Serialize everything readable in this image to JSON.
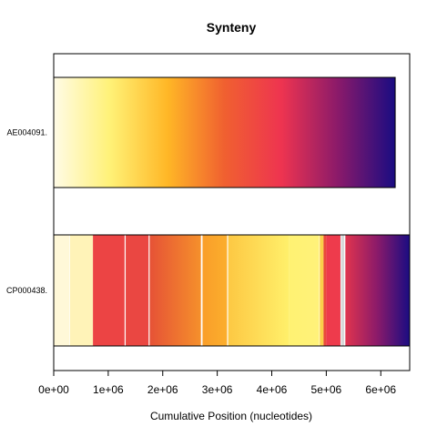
{
  "chart_data": {
    "type": "synteny",
    "title": "Synteny",
    "xlabel": "Cumulative Position (nucleotides)",
    "ylabel": "",
    "xlim": [
      0,
      6530000
    ],
    "xticks": [
      {
        "value": 0,
        "label": "0e+00"
      },
      {
        "value": 1000000,
        "label": "1e+06"
      },
      {
        "value": 2000000,
        "label": "2e+06"
      },
      {
        "value": 3000000,
        "label": "3e+06"
      },
      {
        "value": 4000000,
        "label": "4e+06"
      },
      {
        "value": 5000000,
        "label": "5e+06"
      },
      {
        "value": 6000000,
        "label": "6e+06"
      }
    ],
    "genomes": [
      {
        "label": "AE004091.",
        "length": 6264000,
        "gradient": [
          "#fffbe6",
          "#fff176",
          "#ffb726",
          "#f06030",
          "#ee3450",
          "#8a1a6a",
          "#1a0c82"
        ],
        "blocks": []
      },
      {
        "label": "CP000438.",
        "length": 6530000,
        "blocks": [
          {
            "start": 0,
            "end": 290000,
            "color": "#fff8d8"
          },
          {
            "start": 300000,
            "end": 720000,
            "color": "#fff3b8"
          },
          {
            "start": 720000,
            "end": 1300000,
            "color": "#ec4444"
          },
          {
            "start": 1320000,
            "end": 1740000,
            "color": "#ea4742"
          },
          {
            "start": 1760000,
            "end": 2700000,
            "gradient": [
              "#e65236",
              "#f5902b"
            ]
          },
          {
            "start": 2730000,
            "end": 3180000,
            "gradient": [
              "#fa9e2a",
              "#fbae2c"
            ]
          },
          {
            "start": 3200000,
            "end": 4320000,
            "gradient": [
              "#fdc843",
              "#fff06b"
            ]
          },
          {
            "start": 4320000,
            "end": 4870000,
            "gradient": [
              "#fff272",
              "#fff27a"
            ]
          },
          {
            "start": 4880000,
            "end": 4950000,
            "color": "#fbd04a"
          },
          {
            "start": 4950000,
            "end": 5000000,
            "color": "#e94a3a"
          },
          {
            "start": 5000000,
            "end": 5260000,
            "color": "#ee3b4c"
          },
          {
            "start": 5270000,
            "end": 5330000,
            "color": "#d8d8d8"
          },
          {
            "start": 5350000,
            "end": 6530000,
            "gradient": [
              "#e0344e",
              "#8a1a6a",
              "#1a0c82"
            ]
          }
        ]
      }
    ],
    "grid": false,
    "legend": "none"
  }
}
